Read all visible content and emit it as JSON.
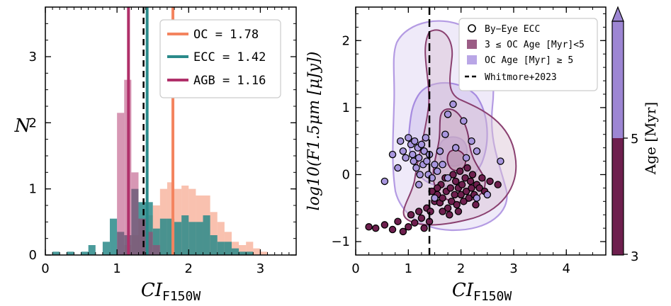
{
  "chart_data": [
    {
      "type": "histogram",
      "panel": "left",
      "xlabel": "CI",
      "xlabel_sub": "F150W",
      "ylabel": "N",
      "xlim": [
        0,
        3.5
      ],
      "ylim": [
        0,
        3.75
      ],
      "xticks": [
        "0",
        "1",
        "2",
        "3"
      ],
      "yticks": [
        "0",
        "1",
        "2",
        "3"
      ],
      "bin_width": 0.1,
      "series": [
        {
          "name": "OC",
          "color": "#f4845f",
          "median": 1.78,
          "median_label": "OC = 1.78",
          "bins": [
            {
              "x": 1.1,
              "v": 0.15
            },
            {
              "x": 1.2,
              "v": 0.3
            },
            {
              "x": 1.3,
              "v": 0.55
            },
            {
              "x": 1.4,
              "v": 0.6
            },
            {
              "x": 1.5,
              "v": 0.75
            },
            {
              "x": 1.6,
              "v": 1.0
            },
            {
              "x": 1.7,
              "v": 1.1
            },
            {
              "x": 1.8,
              "v": 1.0
            },
            {
              "x": 1.9,
              "v": 1.05
            },
            {
              "x": 2.0,
              "v": 1.0
            },
            {
              "x": 2.1,
              "v": 0.9
            },
            {
              "x": 2.2,
              "v": 0.9
            },
            {
              "x": 2.3,
              "v": 0.65
            },
            {
              "x": 2.4,
              "v": 0.5
            },
            {
              "x": 2.5,
              "v": 0.35
            },
            {
              "x": 2.6,
              "v": 0.2
            },
            {
              "x": 2.7,
              "v": 0.15
            },
            {
              "x": 2.8,
              "v": 0.2
            },
            {
              "x": 2.9,
              "v": 0.1
            },
            {
              "x": 3.0,
              "v": 0.05
            }
          ]
        },
        {
          "name": "ECC",
          "color": "#2a8a8a",
          "median": 1.42,
          "median_label": "ECC = 1.42",
          "bins": [
            {
              "x": 0.1,
              "v": 0.05
            },
            {
              "x": 0.3,
              "v": 0.05
            },
            {
              "x": 0.5,
              "v": 0.05
            },
            {
              "x": 0.6,
              "v": 0.15
            },
            {
              "x": 0.8,
              "v": 0.2
            },
            {
              "x": 0.9,
              "v": 0.55
            },
            {
              "x": 1.0,
              "v": 0.35
            },
            {
              "x": 1.1,
              "v": 0.3
            },
            {
              "x": 1.2,
              "v": 1.0
            },
            {
              "x": 1.3,
              "v": 0.8
            },
            {
              "x": 1.4,
              "v": 0.8
            },
            {
              "x": 1.5,
              "v": 0.4
            },
            {
              "x": 1.6,
              "v": 0.55
            },
            {
              "x": 1.7,
              "v": 0.55
            },
            {
              "x": 1.8,
              "v": 0.5
            },
            {
              "x": 1.9,
              "v": 0.6
            },
            {
              "x": 2.0,
              "v": 0.5
            },
            {
              "x": 2.1,
              "v": 0.5
            },
            {
              "x": 2.2,
              "v": 0.6
            },
            {
              "x": 2.3,
              "v": 0.3
            },
            {
              "x": 2.4,
              "v": 0.2
            },
            {
              "x": 2.5,
              "v": 0.2
            },
            {
              "x": 2.6,
              "v": 0.1
            },
            {
              "x": 2.7,
              "v": 0.05
            },
            {
              "x": 2.8,
              "v": 0.05
            }
          ]
        },
        {
          "name": "AGB",
          "color": "#b0306a",
          "median": 1.16,
          "median_label": "AGB = 1.16",
          "bins": [
            {
              "x": 1.0,
              "v": 2.15
            },
            {
              "x": 1.1,
              "v": 2.65
            },
            {
              "x": 1.2,
              "v": 1.25
            },
            {
              "x": 1.3,
              "v": 0.55
            },
            {
              "x": 1.4,
              "v": 0.35
            },
            {
              "x": 1.5,
              "v": 0.15
            }
          ]
        }
      ]
    },
    {
      "type": "scatter",
      "panel": "right",
      "xlabel": "CI",
      "xlabel_sub": "F150W",
      "ylabel": "log10(F1.5μm [μJy])",
      "xlim": [
        0,
        4.75
      ],
      "ylim": [
        -1.2,
        2.5
      ],
      "xticks": [
        "0",
        "1",
        "2",
        "3",
        "4"
      ],
      "yticks": [
        "−1",
        "0",
        "1",
        "2"
      ],
      "whitmore_x": 1.4,
      "legend": [
        "By−Eye ECC",
        "3 ≤ OC Age [Myr]<5",
        "OC Age [Myr] ≥ 5",
        "Whitmore+2023"
      ],
      "colorbar": {
        "label": "Age [Myr]",
        "ticks": [
          "3",
          "5"
        ],
        "low_color": "#6e1f4e",
        "high_color": "#9d86d3"
      },
      "series": [
        {
          "name": "young",
          "color": "#6e1f4e",
          "points": [
            [
              0.25,
              -0.78
            ],
            [
              0.38,
              -0.8
            ],
            [
              0.55,
              -0.75
            ],
            [
              0.7,
              -0.82
            ],
            [
              0.8,
              -0.7
            ],
            [
              0.9,
              -0.85
            ],
            [
              1.0,
              -0.78
            ],
            [
              1.05,
              -0.6
            ],
            [
              1.12,
              -0.72
            ],
            [
              1.2,
              -0.55
            ],
            [
              1.25,
              -0.65
            ],
            [
              1.3,
              -0.8
            ],
            [
              1.35,
              -0.5
            ],
            [
              1.42,
              -0.55
            ],
            [
              1.5,
              -0.4
            ],
            [
              1.55,
              -0.3
            ],
            [
              1.6,
              -0.42
            ],
            [
              1.62,
              -0.15
            ],
            [
              1.65,
              -0.35
            ],
            [
              1.7,
              -0.05
            ],
            [
              1.72,
              -0.25
            ],
            [
              1.75,
              -0.5
            ],
            [
              1.8,
              -0.2
            ],
            [
              1.82,
              -0.4
            ],
            [
              1.85,
              0.0
            ],
            [
              1.88,
              -0.3
            ],
            [
              1.9,
              -0.1
            ],
            [
              1.92,
              -0.45
            ],
            [
              1.95,
              -0.2
            ],
            [
              1.98,
              0.05
            ],
            [
              2.0,
              -0.3
            ],
            [
              2.02,
              -0.15
            ],
            [
              2.05,
              -0.4
            ],
            [
              2.08,
              -0.05
            ],
            [
              2.1,
              -0.25
            ],
            [
              2.12,
              0.1
            ],
            [
              2.15,
              -0.35
            ],
            [
              2.18,
              -0.1
            ],
            [
              2.2,
              -0.2
            ],
            [
              2.22,
              0.0
            ],
            [
              2.25,
              -0.3
            ],
            [
              2.3,
              -0.15
            ],
            [
              2.35,
              -0.2
            ],
            [
              2.4,
              -0.05
            ],
            [
              2.45,
              -0.25
            ],
            [
              2.55,
              -0.1
            ],
            [
              2.7,
              -0.15
            ],
            [
              1.55,
              -0.2
            ],
            [
              1.65,
              -0.55
            ],
            [
              1.45,
              -0.25
            ],
            [
              1.78,
              -0.6
            ],
            [
              1.95,
              -0.55
            ],
            [
              2.28,
              -0.45
            ],
            [
              1.4,
              -0.7
            ]
          ]
        },
        {
          "name": "old",
          "color": "#a896de",
          "points": [
            [
              0.55,
              -0.1
            ],
            [
              0.7,
              0.3
            ],
            [
              0.8,
              0.1
            ],
            [
              0.85,
              0.5
            ],
            [
              0.9,
              0.35
            ],
            [
              0.95,
              0.25
            ],
            [
              1.0,
              0.55
            ],
            [
              1.05,
              0.45
            ],
            [
              1.08,
              0.3
            ],
            [
              1.1,
              0.2
            ],
            [
              1.12,
              0.5
            ],
            [
              1.15,
              0.1
            ],
            [
              1.18,
              0.4
            ],
            [
              1.2,
              0.25
            ],
            [
              1.22,
              0.0
            ],
            [
              1.25,
              0.45
            ],
            [
              1.28,
              0.15
            ],
            [
              1.3,
              0.35
            ],
            [
              1.33,
              0.55
            ],
            [
              1.35,
              0.2
            ],
            [
              1.38,
              0.0
            ],
            [
              1.4,
              0.3
            ],
            [
              1.45,
              -0.05
            ],
            [
              1.5,
              0.15
            ],
            [
              1.55,
              0.05
            ],
            [
              1.6,
              0.35
            ],
            [
              1.7,
              0.6
            ],
            [
              1.75,
              0.9
            ],
            [
              1.85,
              1.05
            ],
            [
              2.05,
              0.8
            ],
            [
              2.2,
              0.5
            ],
            [
              1.9,
              0.4
            ],
            [
              2.1,
              0.25
            ],
            [
              1.65,
              0.15
            ],
            [
              1.75,
              -0.05
            ],
            [
              2.3,
              0.35
            ],
            [
              2.5,
              -0.3
            ],
            [
              2.75,
              0.2
            ],
            [
              2.3,
              -0.35
            ],
            [
              1.5,
              -0.35
            ],
            [
              1.2,
              -0.15
            ]
          ]
        }
      ]
    }
  ]
}
